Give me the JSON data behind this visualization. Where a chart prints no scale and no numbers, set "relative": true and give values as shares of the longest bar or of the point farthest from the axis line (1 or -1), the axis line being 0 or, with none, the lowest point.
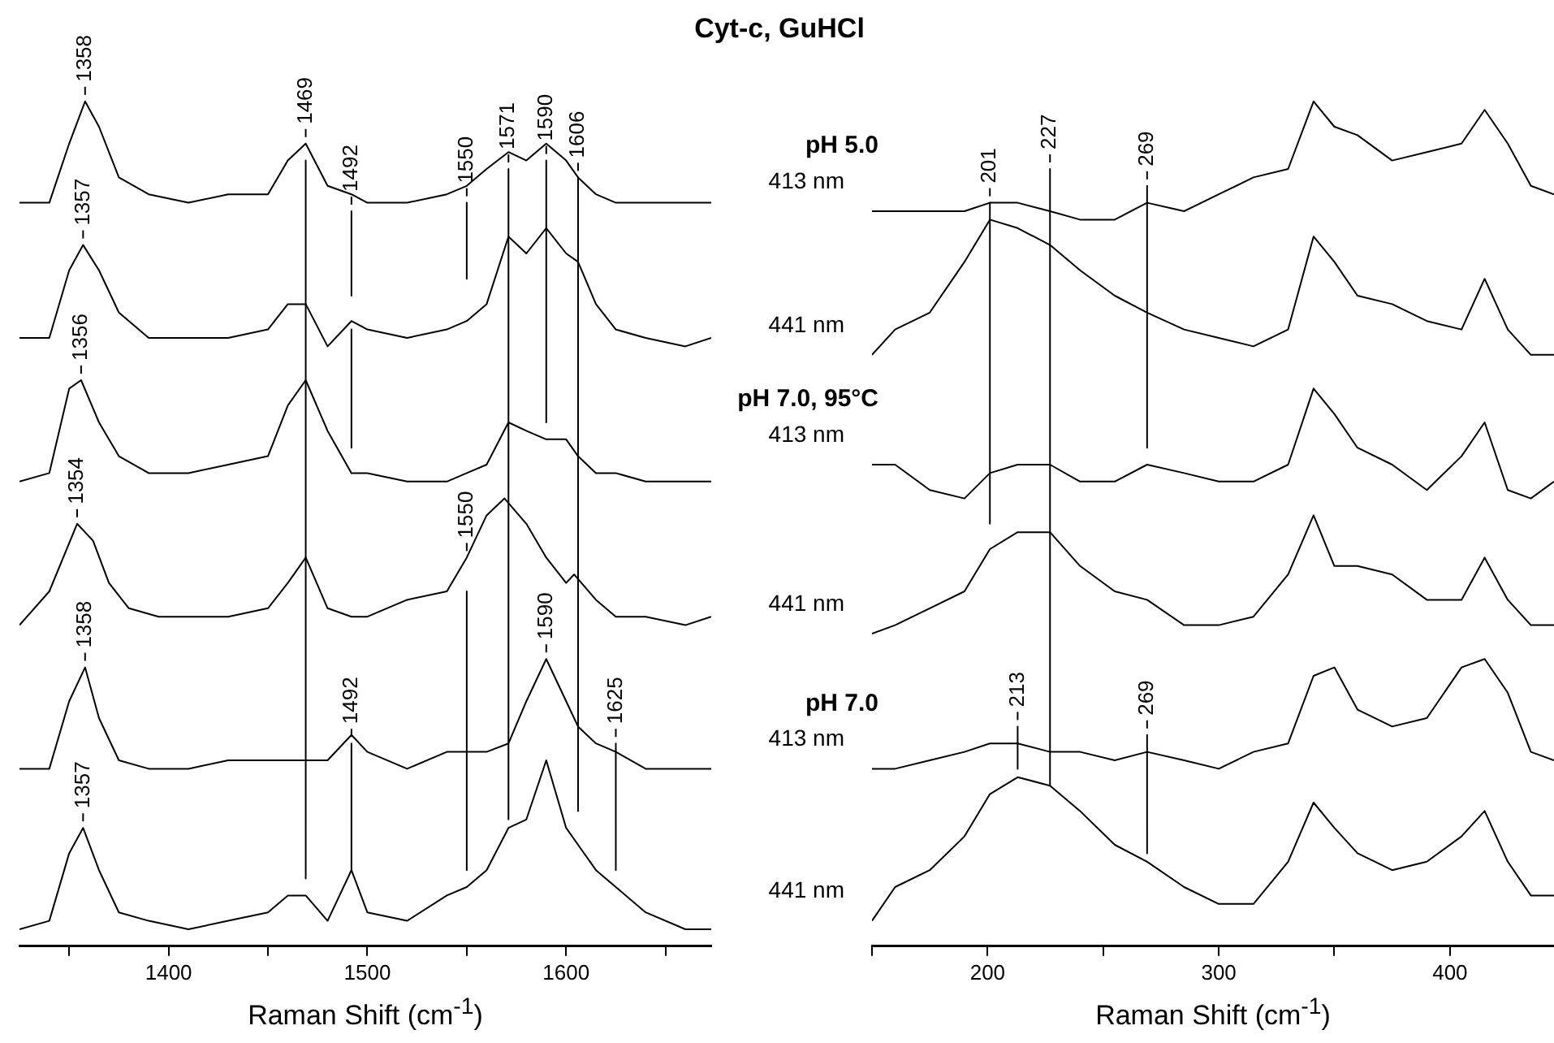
{
  "chart_data": [
    {
      "type": "line",
      "title": "Cyt-c, GuHCl",
      "xlabel": "Raman Shift (cm$^{-1}$)",
      "relative": true,
      "grid": false,
      "legend": false,
      "marker": "none",
      "xlim": [
        1325,
        1673
      ],
      "xticks": [
        {
          "value": 1350,
          "label": null
        },
        1400,
        {
          "value": 1450,
          "label": null
        },
        1500,
        {
          "value": 1550,
          "label": null
        },
        1600,
        {
          "value": 1650,
          "label": null
        }
      ],
      "x": [
        1325,
        1340,
        1350,
        1358,
        1365,
        1375,
        1390,
        1410,
        1430,
        1450,
        1460,
        1469,
        1480,
        1492,
        1500,
        1520,
        1540,
        1550,
        1560,
        1571,
        1580,
        1590,
        1600,
        1606,
        1615,
        1625,
        1640,
        1660,
        1673
      ],
      "series": [
        {
          "color": "#000000",
          "values": [
            0.88,
            0.88,
            0.95,
            1,
            0.97,
            0.91,
            0.89,
            0.88,
            0.89,
            0.89,
            0.93,
            0.95,
            0.9,
            0.89,
            0.88,
            0.88,
            0.89,
            0.9,
            0.92,
            0.94,
            0.93,
            0.95,
            0.93,
            0.91,
            0.89,
            0.88,
            0.88,
            0.88,
            0.88
          ]
        },
        {
          "color": "#000000",
          "x": [
            1325,
            1340,
            1350,
            1357,
            1365,
            1375,
            1390,
            1410,
            1430,
            1450,
            1460,
            1469,
            1480,
            1492,
            1500,
            1520,
            1540,
            1550,
            1560,
            1571,
            1580,
            1590,
            1600,
            1606,
            1615,
            1625,
            1640,
            1660,
            1673
          ],
          "values": [
            0.72,
            0.72,
            0.8,
            0.83,
            0.8,
            0.75,
            0.72,
            0.72,
            0.72,
            0.73,
            0.76,
            0.76,
            0.71,
            0.74,
            0.73,
            0.72,
            0.73,
            0.74,
            0.76,
            0.84,
            0.82,
            0.85,
            0.82,
            0.81,
            0.76,
            0.73,
            0.72,
            0.71,
            0.72
          ]
        },
        {
          "color": "#000000",
          "x": [
            1325,
            1340,
            1350,
            1356,
            1365,
            1375,
            1390,
            1410,
            1430,
            1450,
            1460,
            1469,
            1480,
            1492,
            1500,
            1520,
            1540,
            1550,
            1560,
            1571,
            1580,
            1590,
            1600,
            1606,
            1615,
            1625,
            1640,
            1660,
            1673
          ],
          "values": [
            0.55,
            0.56,
            0.66,
            0.67,
            0.62,
            0.58,
            0.56,
            0.56,
            0.57,
            0.58,
            0.64,
            0.67,
            0.61,
            0.56,
            0.56,
            0.55,
            0.55,
            0.56,
            0.57,
            0.62,
            0.61,
            0.6,
            0.6,
            0.58,
            0.56,
            0.56,
            0.55,
            0.55,
            0.55
          ]
        },
        {
          "color": "#000000",
          "x": [
            1325,
            1340,
            1354,
            1362,
            1370,
            1380,
            1395,
            1410,
            1430,
            1450,
            1460,
            1469,
            1480,
            1492,
            1500,
            1520,
            1540,
            1550,
            1560,
            1569,
            1580,
            1590,
            1600,
            1604,
            1615,
            1625,
            1640,
            1660,
            1673
          ],
          "values": [
            0.38,
            0.42,
            0.5,
            0.48,
            0.43,
            0.4,
            0.39,
            0.39,
            0.39,
            0.4,
            0.43,
            0.46,
            0.4,
            0.39,
            0.39,
            0.41,
            0.42,
            0.46,
            0.51,
            0.53,
            0.5,
            0.46,
            0.43,
            0.44,
            0.41,
            0.39,
            0.39,
            0.38,
            0.39
          ]
        },
        {
          "color": "#000000",
          "values": [
            0.21,
            0.21,
            0.29,
            0.33,
            0.27,
            0.22,
            0.21,
            0.21,
            0.22,
            0.22,
            0.22,
            0.22,
            0.22,
            0.25,
            0.23,
            0.21,
            0.23,
            0.23,
            0.23,
            0.24,
            0.29,
            0.34,
            0.29,
            0.26,
            0.24,
            0.23,
            0.21,
            0.21,
            0.21
          ]
        },
        {
          "color": "#000000",
          "x": [
            1325,
            1340,
            1350,
            1357,
            1365,
            1375,
            1390,
            1410,
            1430,
            1450,
            1460,
            1469,
            1480,
            1492,
            1500,
            1520,
            1540,
            1550,
            1560,
            1571,
            1580,
            1590,
            1600,
            1606,
            1615,
            1625,
            1640,
            1660,
            1673
          ],
          "values": [
            0.02,
            0.03,
            0.11,
            0.14,
            0.09,
            0.04,
            0.03,
            0.02,
            0.03,
            0.04,
            0.06,
            0.06,
            0.03,
            0.09,
            0.04,
            0.03,
            0.06,
            0.07,
            0.09,
            0.14,
            0.15,
            0.22,
            0.14,
            0.12,
            0.09,
            0.07,
            0.04,
            0.02,
            0.02
          ]
        },
        {
          "color": "#000000",
          "x": [
            1469,
            1469
          ],
          "values": [
            0.93,
            0.08
          ]
        },
        {
          "color": "#000000",
          "x": [
            1492,
            1492
          ],
          "values": [
            0.87,
            0.77
          ]
        },
        {
          "color": "#000000",
          "x": [
            1492,
            1492
          ],
          "values": [
            0.73,
            0.59
          ]
        },
        {
          "color": "#000000",
          "x": [
            1492,
            1492
          ],
          "values": [
            0.24,
            0.09
          ]
        },
        {
          "color": "#000000",
          "x": [
            1550,
            1550
          ],
          "values": [
            0.88,
            0.79
          ]
        },
        {
          "color": "#000000",
          "x": [
            1550,
            1550
          ],
          "values": [
            0.42,
            0.09
          ]
        },
        {
          "color": "#000000",
          "x": [
            1571,
            1571
          ],
          "values": [
            0.92,
            0.15
          ]
        },
        {
          "color": "#000000",
          "x": [
            1590,
            1590
          ],
          "values": [
            0.93,
            0.62
          ]
        },
        {
          "color": "#000000",
          "x": [
            1606,
            1606
          ],
          "values": [
            0.91,
            0.16
          ]
        },
        {
          "color": "#000000",
          "x": [
            1625,
            1625
          ],
          "values": [
            0.24,
            0.09
          ]
        }
      ],
      "annotations": [
        {
          "text": "1358",
          "x": 1358,
          "y": 1.0
        },
        {
          "text": "1469",
          "x": 1469,
          "y": 0.95
        },
        {
          "text": "1492",
          "x": 1492,
          "y": 0.87
        },
        {
          "text": "1550",
          "x": 1550,
          "y": 0.88
        },
        {
          "text": "1571",
          "x": 1571,
          "y": 0.92
        },
        {
          "text": "1590",
          "x": 1590,
          "y": 0.93
        },
        {
          "text": "1606",
          "x": 1606,
          "y": 0.91
        },
        {
          "text": "1357",
          "x": 1357,
          "y": 0.83
        },
        {
          "text": "1356",
          "x": 1356,
          "y": 0.67
        },
        {
          "text": "1354",
          "x": 1354,
          "y": 0.5
        },
        {
          "text": "1550",
          "x": 1550,
          "y": 0.46
        },
        {
          "text": "1358",
          "x": 1358,
          "y": 0.33
        },
        {
          "text": "1492",
          "x": 1492,
          "y": 0.24
        },
        {
          "text": "1590",
          "x": 1590,
          "y": 0.34
        },
        {
          "text": "1625",
          "x": 1625,
          "y": 0.24
        },
        {
          "text": "1357",
          "x": 1357,
          "y": 0.14
        }
      ]
    },
    {
      "type": "line",
      "xlabel": "Raman Shift (cm$^{-1}$)",
      "relative": true,
      "grid": false,
      "legend": false,
      "marker": "none",
      "xlim": [
        150,
        445
      ],
      "xticks": [
        {
          "value": 150,
          "label": null
        },
        200,
        {
          "value": 250,
          "label": null
        },
        300,
        {
          "value": 350,
          "label": null
        },
        400
      ],
      "x": [
        150,
        160,
        175,
        190,
        201,
        213,
        227,
        240,
        255,
        269,
        285,
        300,
        315,
        330,
        341,
        350,
        360,
        375,
        390,
        405,
        415,
        425,
        435,
        445
      ],
      "series": [
        {
          "name": "413 nm",
          "color": "#000000",
          "values": [
            0.87,
            0.87,
            0.87,
            0.87,
            0.88,
            0.88,
            0.87,
            0.86,
            0.86,
            0.88,
            0.87,
            0.89,
            0.91,
            0.92,
            1,
            0.97,
            0.96,
            0.93,
            0.94,
            0.95,
            0.99,
            0.95,
            0.9,
            0.89
          ]
        },
        {
          "name": "441 nm",
          "color": "#000000",
          "values": [
            0.7,
            0.73,
            0.75,
            0.81,
            0.86,
            0.85,
            0.83,
            0.8,
            0.77,
            0.75,
            0.73,
            0.72,
            0.71,
            0.73,
            0.84,
            0.81,
            0.77,
            0.76,
            0.74,
            0.73,
            0.79,
            0.73,
            0.7,
            0.7
          ]
        },
        {
          "name": "413 nm",
          "color": "#000000",
          "values": [
            0.57,
            0.57,
            0.54,
            0.53,
            0.56,
            0.57,
            0.57,
            0.55,
            0.55,
            0.57,
            0.56,
            0.55,
            0.55,
            0.57,
            0.66,
            0.63,
            0.59,
            0.57,
            0.54,
            0.58,
            0.62,
            0.54,
            0.53,
            0.55
          ]
        },
        {
          "name": "441 nm",
          "color": "#000000",
          "values": [
            0.37,
            0.38,
            0.4,
            0.42,
            0.47,
            0.49,
            0.49,
            0.45,
            0.42,
            0.41,
            0.38,
            0.38,
            0.39,
            0.44,
            0.51,
            0.45,
            0.45,
            0.44,
            0.41,
            0.41,
            0.46,
            0.41,
            0.38,
            0.38
          ]
        },
        {
          "name": "413 nm",
          "color": "#000000",
          "values": [
            0.21,
            0.21,
            0.22,
            0.23,
            0.24,
            0.24,
            0.23,
            0.23,
            0.22,
            0.23,
            0.22,
            0.21,
            0.23,
            0.24,
            0.32,
            0.33,
            0.28,
            0.26,
            0.27,
            0.33,
            0.34,
            0.3,
            0.23,
            0.22
          ]
        },
        {
          "name": "441 nm",
          "color": "#000000",
          "values": [
            0.03,
            0.07,
            0.09,
            0.13,
            0.18,
            0.2,
            0.19,
            0.16,
            0.12,
            0.1,
            0.07,
            0.05,
            0.05,
            0.1,
            0.17,
            0.14,
            0.11,
            0.09,
            0.1,
            0.13,
            0.16,
            0.1,
            0.06,
            0.06
          ]
        },
        {
          "color": "#000000",
          "x": [
            201,
            201
          ],
          "values": [
            0.88,
            0.5
          ]
        },
        {
          "color": "#000000",
          "x": [
            227,
            227
          ],
          "values": [
            0.92,
            0.19
          ]
        },
        {
          "color": "#000000",
          "x": [
            269,
            269
          ],
          "values": [
            0.9,
            0.59
          ]
        },
        {
          "color": "#000000",
          "x": [
            269,
            269
          ],
          "values": [
            0.25,
            0.11
          ]
        },
        {
          "color": "#000000",
          "x": [
            213,
            213
          ],
          "values": [
            0.26,
            0.21
          ]
        }
      ],
      "annotations": [
        "pH 5.0",
        "pH 7.0, 95°C",
        "pH 7.0",
        {
          "text": "201",
          "x": 201,
          "y": 0.88
        },
        {
          "text": "227",
          "x": 227,
          "y": 0.92
        },
        {
          "text": "269",
          "x": 269,
          "y": 0.9
        },
        {
          "text": "213",
          "x": 213,
          "y": 0.26
        },
        {
          "text": "269",
          "x": 269,
          "y": 0.25
        }
      ]
    }
  ]
}
